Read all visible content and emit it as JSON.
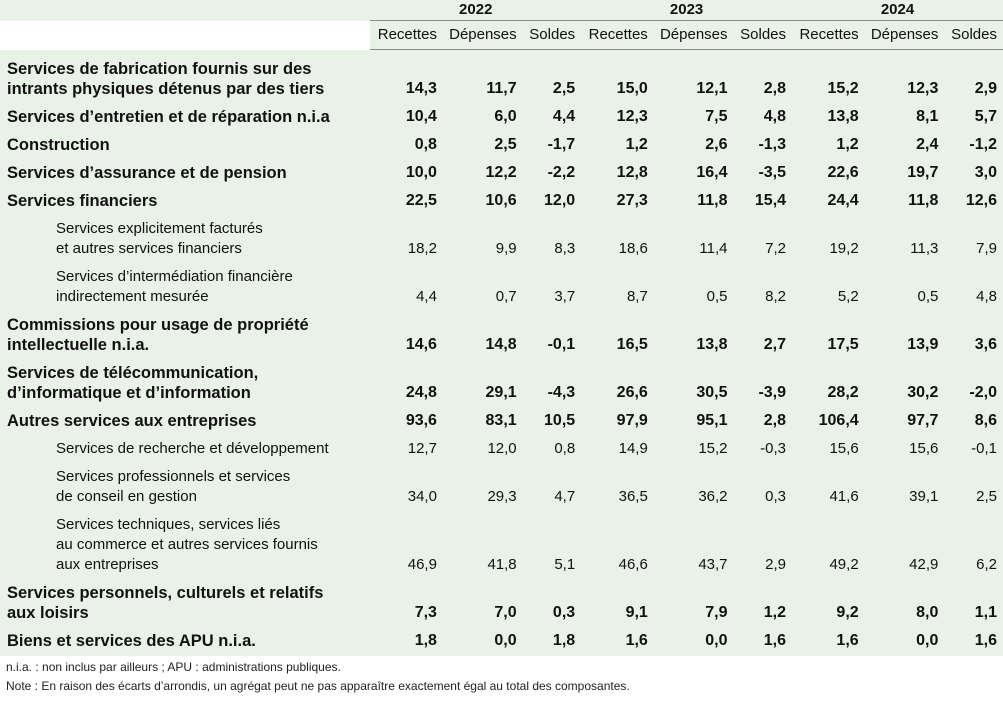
{
  "header": {
    "years": [
      "2022",
      "2023",
      "2024"
    ],
    "columns": [
      "Recettes",
      "Dépenses",
      "Soldes"
    ]
  },
  "rows": [
    {
      "kind": "main",
      "label": [
        "Services de fabrication fournis sur des",
        "intrants physiques détenus par des tiers"
      ],
      "values": [
        "14,3",
        "11,7",
        "2,5",
        "15,0",
        "12,1",
        "2,8",
        "15,2",
        "12,3",
        "2,9"
      ]
    },
    {
      "kind": "main",
      "label": [
        "Services d’entretien et de réparation n.i.a"
      ],
      "values": [
        "10,4",
        "6,0",
        "4,4",
        "12,3",
        "7,5",
        "4,8",
        "13,8",
        "8,1",
        "5,7"
      ]
    },
    {
      "kind": "main",
      "label": [
        "Construction"
      ],
      "values": [
        "0,8",
        "2,5",
        "-1,7",
        "1,2",
        "2,6",
        "-1,3",
        "1,2",
        "2,4",
        "-1,2"
      ]
    },
    {
      "kind": "main",
      "label": [
        "Services d’assurance et de pension"
      ],
      "values": [
        "10,0",
        "12,2",
        "-2,2",
        "12,8",
        "16,4",
        "-3,5",
        "22,6",
        "19,7",
        "3,0"
      ]
    },
    {
      "kind": "main",
      "label": [
        "Services financiers"
      ],
      "values": [
        "22,5",
        "10,6",
        "12,0",
        "27,3",
        "11,8",
        "15,4",
        "24,4",
        "11,8",
        "12,6"
      ]
    },
    {
      "kind": "sub",
      "label": [
        "Services explicitement facturés",
        "et autres services financiers"
      ],
      "values": [
        "18,2",
        "9,9",
        "8,3",
        "18,6",
        "11,4",
        "7,2",
        "19,2",
        "11,3",
        "7,9"
      ]
    },
    {
      "kind": "sub",
      "label": [
        "Services d’intermédiation financière",
        "indirectement mesurée"
      ],
      "values": [
        "4,4",
        "0,7",
        "3,7",
        "8,7",
        "0,5",
        "8,2",
        "5,2",
        "0,5",
        "4,8"
      ]
    },
    {
      "kind": "main",
      "label": [
        "Commissions pour usage de propriété",
        "intellectuelle n.i.a."
      ],
      "values": [
        "14,6",
        "14,8",
        "-0,1",
        "16,5",
        "13,8",
        "2,7",
        "17,5",
        "13,9",
        "3,6"
      ]
    },
    {
      "kind": "main",
      "label": [
        "Services de télécommunication,",
        "d’informatique et d’information"
      ],
      "values": [
        "24,8",
        "29,1",
        "-4,3",
        "26,6",
        "30,5",
        "-3,9",
        "28,2",
        "30,2",
        "-2,0"
      ]
    },
    {
      "kind": "main",
      "label": [
        "Autres services aux entreprises"
      ],
      "values": [
        "93,6",
        "83,1",
        "10,5",
        "97,9",
        "95,1",
        "2,8",
        "106,4",
        "97,7",
        "8,6"
      ]
    },
    {
      "kind": "sub",
      "label": [
        "Services de recherche et développement"
      ],
      "values": [
        "12,7",
        "12,0",
        "0,8",
        "14,9",
        "15,2",
        "-0,3",
        "15,6",
        "15,6",
        "-0,1"
      ]
    },
    {
      "kind": "sub",
      "label": [
        "Services professionnels et services",
        "de conseil en gestion"
      ],
      "values": [
        "34,0",
        "29,3",
        "4,7",
        "36,5",
        "36,2",
        "0,3",
        "41,6",
        "39,1",
        "2,5"
      ]
    },
    {
      "kind": "sub",
      "label": [
        "Services techniques, services liés",
        "au commerce et autres services fournis",
        "aux entreprises"
      ],
      "values": [
        "46,9",
        "41,8",
        "5,1",
        "46,6",
        "43,7",
        "2,9",
        "49,2",
        "42,9",
        "6,2"
      ]
    },
    {
      "kind": "main",
      "label": [
        "Services personnels, culturels et relatifs",
        "aux loisirs"
      ],
      "values": [
        "7,3",
        "7,0",
        "0,3",
        "9,1",
        "7,9",
        "1,2",
        "9,2",
        "8,0",
        "1,1"
      ]
    },
    {
      "kind": "main",
      "label": [
        "Biens et services des APU n.i.a."
      ],
      "values": [
        "1,8",
        "0,0",
        "1,8",
        "1,6",
        "0,0",
        "1,6",
        "1,6",
        "0,0",
        "1,6"
      ]
    }
  ],
  "notes": {
    "abbrev": "n.i.a. : non inclus par ailleurs ; APU : administrations publiques.",
    "rounding": "Note : En raison des écarts d’arrondis, un agrégat peut ne pas apparaître exactement égal au total des composantes."
  }
}
